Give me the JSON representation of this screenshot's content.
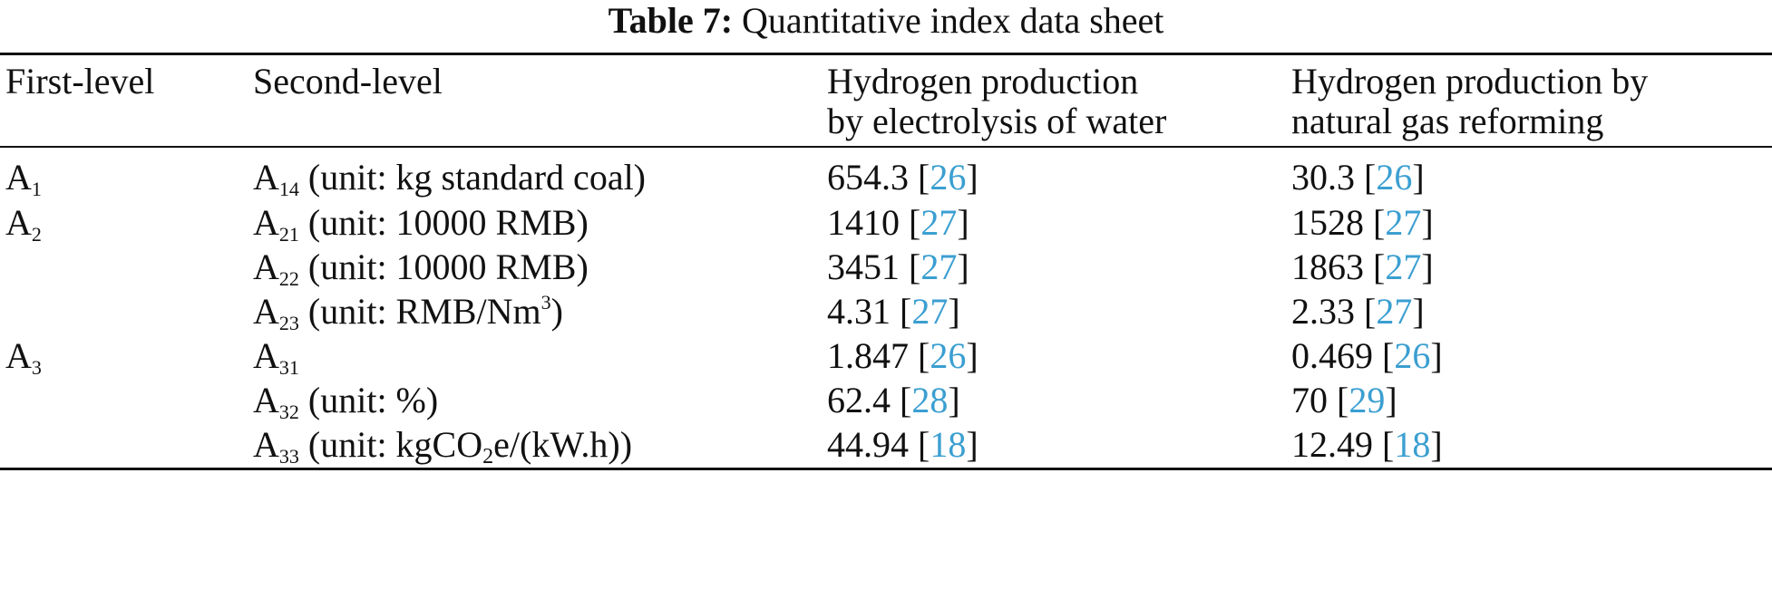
{
  "caption": {
    "label": "Table 7:",
    "text": "Quantitative index data sheet"
  },
  "headers": {
    "first_level": "First-level",
    "second_level": "Second-level",
    "col3": [
      "Hydrogen production",
      "by electrolysis of water"
    ],
    "col4": [
      "Hydrogen production by",
      "natural gas reforming"
    ]
  },
  "rows": [
    {
      "first": {
        "base": "A",
        "sub": "1"
      },
      "second": {
        "base": "A",
        "sub": "14",
        "unit": " (unit: kg standard coal)"
      },
      "v3": "654.3",
      "r3": "26",
      "v4": "30.3",
      "r4": "26"
    },
    {
      "first": {
        "base": "A",
        "sub": "2"
      },
      "second": {
        "base": "A",
        "sub": "21",
        "unit": " (unit: 10000 RMB)"
      },
      "v3": "1410",
      "r3": "27",
      "v4": "1528",
      "r4": "27"
    },
    {
      "first": null,
      "second": {
        "base": "A",
        "sub": "22",
        "unit": " (unit: 10000 RMB)"
      },
      "v3": "3451",
      "r3": "27",
      "v4": "1863",
      "r4": "27"
    },
    {
      "first": null,
      "second": {
        "base": "A",
        "sub": "23",
        "unit_pre": " (unit: RMB/Nm",
        "unit_sup": "3",
        "unit_post": ")"
      },
      "v3": "4.31",
      "r3": "27",
      "v4": "2.33",
      "r4": "27"
    },
    {
      "first": {
        "base": "A",
        "sub": "3"
      },
      "second": {
        "base": "A",
        "sub": "31",
        "unit": ""
      },
      "v3": "1.847",
      "r3": "26",
      "v4": "0.469",
      "r4": "26"
    },
    {
      "first": null,
      "second": {
        "base": "A",
        "sub": "32",
        "unit": " (unit: %)"
      },
      "v3": "62.4",
      "r3": "28",
      "v4": "70",
      "r4": "29"
    },
    {
      "first": null,
      "second": {
        "base": "A",
        "sub": "33",
        "unit_pre": " (unit: kgCO",
        "unit_sub": "2",
        "unit_post": "e/(kW.h))"
      },
      "v3": "44.94",
      "r3": "18",
      "v4": "12.49",
      "r4": "18"
    }
  ],
  "colors": {
    "link": "#3b9fd1",
    "text": "#111111"
  }
}
